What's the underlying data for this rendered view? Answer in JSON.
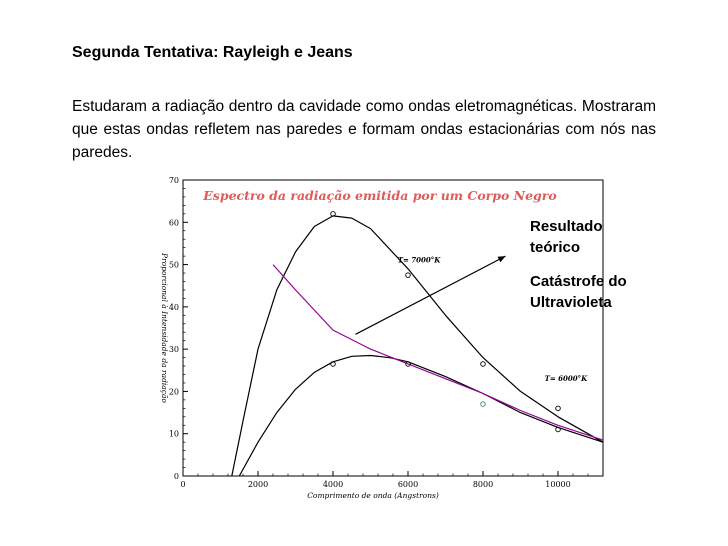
{
  "slide": {
    "title": "Segunda Tentativa: Rayleigh e Jeans",
    "paragraph": "Estudaram a radiação dentro da cavidade como ondas eletromagnéticas. Mostraram que estas ondas refletem nas paredes e formam ondas estacionárias com nós nas paredes.",
    "annotation_1": "Resultado teórico",
    "annotation_2": "Catástrofe do Ultravioleta"
  },
  "chart_data": {
    "type": "line",
    "title": "Espectro da radiação emitida por um Corpo Negro",
    "xlabel": "Comprimento de onda (Angstrons)",
    "ylabel": "Proporcional à Intensidade da radiação",
    "xlim": [
      0,
      11200
    ],
    "ylim": [
      0,
      70
    ],
    "x_ticks": [
      0,
      2000,
      4000,
      6000,
      8000,
      10000
    ],
    "y_ticks": [
      0,
      10,
      20,
      30,
      40,
      50,
      60,
      70
    ],
    "grid": false,
    "colors": {
      "curves": "#000000",
      "rayleigh_jeans": "#990099",
      "title": "#e05a5a",
      "points_green": "#2e8b57"
    },
    "series": [
      {
        "name": "T= 7000°K",
        "x": [
          1300,
          1600,
          2000,
          2500,
          3000,
          3500,
          4000,
          4500,
          5000,
          6000,
          7000,
          8000,
          9000,
          10000,
          11200
        ],
        "values": [
          0,
          13,
          30,
          44,
          53,
          59,
          61.5,
          61,
          58.5,
          49,
          38,
          28,
          20,
          14,
          8
        ]
      },
      {
        "name": "T= 6000°K",
        "x": [
          1500,
          2000,
          2500,
          3000,
          3500,
          4000,
          4500,
          5000,
          5500,
          6000,
          7000,
          8000,
          9000,
          10000,
          11200
        ],
        "values": [
          0,
          8,
          15,
          20.5,
          24.5,
          27,
          28.3,
          28.5,
          28,
          27,
          23.5,
          19.5,
          15,
          11.5,
          8
        ]
      },
      {
        "name": "Rayleigh-Jeans",
        "x": [
          2400,
          3000,
          4000,
          5000,
          6000,
          7000,
          8000,
          9000,
          10000,
          11200
        ],
        "values": [
          50,
          44,
          34.5,
          30,
          26.5,
          23,
          19.5,
          15.5,
          12,
          8.5
        ]
      }
    ],
    "points": {
      "x": [
        4000,
        6000,
        8000,
        10000,
        4000,
        6000,
        8000,
        10000
      ],
      "values": [
        62,
        47.5,
        26.5,
        16,
        26.5,
        26.5,
        17,
        11
      ]
    },
    "annotations": [
      "T= 7000°K",
      "T= 6000°K"
    ]
  }
}
